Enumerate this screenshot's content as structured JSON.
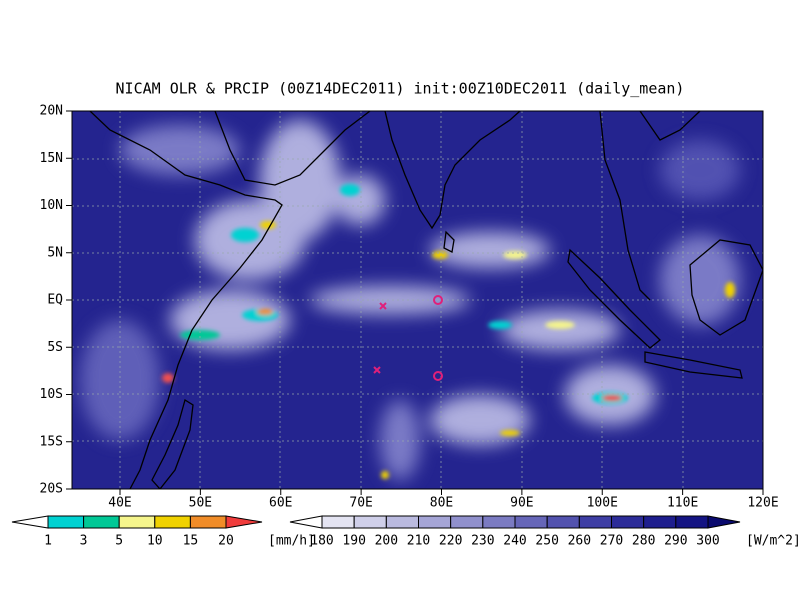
{
  "title": "NICAM OLR & PRCIP (00Z14DEC2011) init:00Z10DEC2011 (daily_mean)",
  "map": {
    "lat_labels": [
      "20N",
      "15N",
      "10N",
      "5N",
      "EQ",
      "5S",
      "10S",
      "15S",
      "20S"
    ],
    "lon_labels": [
      "40E",
      "50E",
      "60E",
      "70E",
      "80E",
      "90E",
      "100E",
      "110E",
      "120E"
    ]
  },
  "precip_colorbar": {
    "levels": [
      1,
      3,
      5,
      10,
      15,
      20
    ],
    "unit": "[mm/h]",
    "colors": [
      "#ffffff",
      "#00d2d2",
      "#00c896",
      "#f5f58c",
      "#f0d200",
      "#f08c28",
      "#f03c3c"
    ]
  },
  "olr_colorbar": {
    "levels": [
      180,
      190,
      200,
      210,
      220,
      230,
      240,
      250,
      260,
      270,
      280,
      290,
      300
    ],
    "unit": "[W/m^2]",
    "colors": [
      "#ffffff",
      "#e4e4f2",
      "#cfcfe9",
      "#babadf",
      "#a5a5d6",
      "#9090cc",
      "#7b7bc2",
      "#6666b8",
      "#5252ae",
      "#3e3ea4",
      "#2c2c99",
      "#1e1e8e",
      "#141483",
      "#0a0a6e"
    ]
  }
}
